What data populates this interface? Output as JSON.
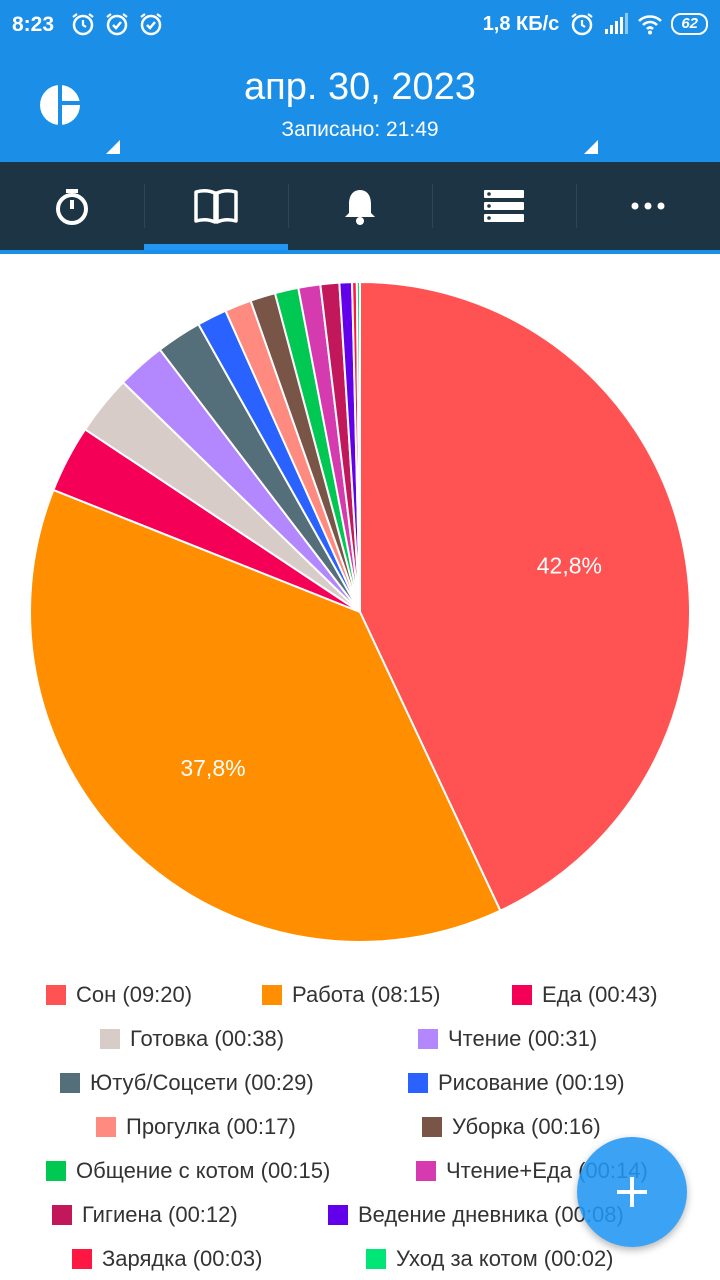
{
  "status_bar": {
    "time": "8:23",
    "speed": "1,8 КБ/с",
    "battery": "62"
  },
  "app_bar": {
    "title": "апр. 30, 2023",
    "subtitle": "Записано: 21:49"
  },
  "tabs": [
    {
      "icon": "stopwatch-icon",
      "active": false
    },
    {
      "icon": "book-icon",
      "active": true
    },
    {
      "icon": "bell-icon",
      "active": false
    },
    {
      "icon": "list-icon",
      "active": false
    },
    {
      "icon": "more-icon",
      "active": false
    }
  ],
  "chart_data": {
    "type": "pie",
    "labels": [
      "Сон (09:20)",
      "Работа (08:15)",
      "Еда (00:43)",
      "Готовка (00:38)",
      "Чтение (00:31)",
      "Ютуб/Соцсети (00:29)",
      "Рисование  (00:19)",
      "Прогулка (00:17)",
      "Уборка (00:16)",
      "Общение с котом (00:15)",
      "Чтение+Еда (00:14)",
      "Гигиена  (00:12)",
      "Ведение дневника  (00:08)",
      "Зарядка  (00:03)",
      "Уход за котом (00:02)"
    ],
    "minutes": [
      560,
      495,
      43,
      38,
      31,
      29,
      19,
      17,
      16,
      15,
      14,
      12,
      8,
      3,
      2
    ],
    "colors": [
      "#ff5252",
      "#ff8f00",
      "#f50057",
      "#d7ccc8",
      "#b388ff",
      "#546e7a",
      "#2962ff",
      "#ff8a80",
      "#795548",
      "#00c853",
      "#d63aaf",
      "#c2185b",
      "#6200ea",
      "#ff1744",
      "#00e676"
    ],
    "slice_labels": [
      "42,8%",
      "37,8%",
      "",
      "",
      "",
      "",
      "",
      "",
      "",
      "",
      "",
      "",
      "",
      "",
      ""
    ]
  },
  "fab": {
    "icon": "plus-icon"
  }
}
